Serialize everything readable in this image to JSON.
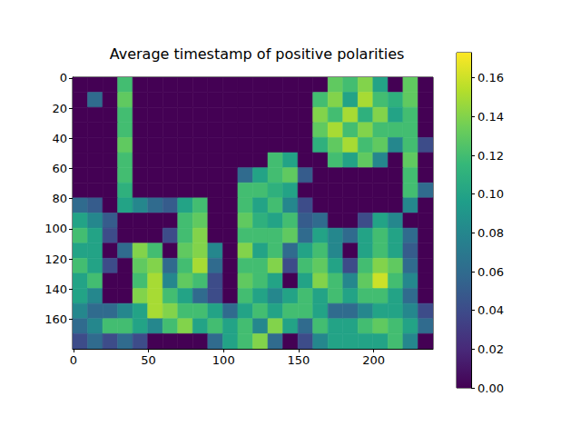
{
  "chart_data": {
    "type": "heatmap",
    "title": "Average timestamp of positive polarities",
    "color": "viridis",
    "xlim": [
      -0.5,
      239.5
    ],
    "ylim": [
      179.5,
      -0.5
    ],
    "xticks": [
      0,
      50,
      100,
      150,
      200
    ],
    "yticks": [
      0,
      20,
      40,
      60,
      80,
      100,
      120,
      140,
      160
    ],
    "x_bins": [
      -0.5,
      9.5,
      19.5,
      29.5,
      39.5,
      49.5,
      59.5,
      69.5,
      79.5,
      89.5,
      99.5,
      109.5,
      119.5,
      129.5,
      139.5,
      149.5,
      159.5,
      169.5,
      179.5,
      189.5,
      199.5,
      209.5,
      219.5,
      229.5,
      239.5
    ],
    "y_bins": [
      -0.5,
      9.5,
      19.5,
      29.5,
      39.5,
      49.5,
      59.5,
      69.5,
      79.5,
      89.5,
      99.5,
      109.5,
      119.5,
      129.5,
      139.5,
      149.5,
      159.5,
      169.5,
      179.5
    ],
    "values": [
      [
        0,
        0,
        0,
        0.12,
        0,
        0,
        0,
        0,
        0,
        0,
        0,
        0,
        0,
        0,
        0,
        0,
        0,
        0.13,
        0.12,
        0.14,
        0.1,
        0,
        0.13,
        0
      ],
      [
        0,
        0.06,
        0,
        0.13,
        0,
        0,
        0,
        0,
        0,
        0,
        0,
        0,
        0,
        0,
        0,
        0,
        0.12,
        0.14,
        0.1,
        0.15,
        0.12,
        0.11,
        0.13,
        0
      ],
      [
        0,
        0,
        0,
        0.12,
        0,
        0,
        0,
        0,
        0,
        0,
        0,
        0,
        0,
        0,
        0,
        0,
        0.14,
        0.12,
        0.15,
        0.11,
        0.14,
        0.1,
        0.12,
        0
      ],
      [
        0,
        0,
        0,
        0.12,
        0,
        0,
        0,
        0,
        0,
        0,
        0,
        0,
        0,
        0,
        0,
        0,
        0.13,
        0.15,
        0.12,
        0.14,
        0.12,
        0.12,
        0.12,
        0
      ],
      [
        0,
        0,
        0,
        0.13,
        0,
        0,
        0,
        0,
        0,
        0,
        0,
        0,
        0,
        0,
        0,
        0,
        0.11,
        0.13,
        0.15,
        0.12,
        0.13,
        0.08,
        0.12,
        0.04
      ],
      [
        0,
        0,
        0,
        0.12,
        0,
        0,
        0,
        0,
        0,
        0,
        0,
        0,
        0,
        0.12,
        0.1,
        0,
        0,
        0.12,
        0.1,
        0.13,
        0.08,
        0,
        0.13,
        0
      ],
      [
        0,
        0,
        0,
        0.12,
        0,
        0,
        0,
        0,
        0,
        0,
        0,
        0.06,
        0.1,
        0.12,
        0.13,
        0.05,
        0,
        0,
        0,
        0,
        0,
        0,
        0.12,
        0
      ],
      [
        0,
        0,
        0,
        0.11,
        0,
        0,
        0,
        0,
        0,
        0,
        0,
        0.12,
        0.12,
        0.11,
        0.1,
        0,
        0,
        0,
        0,
        0,
        0,
        0,
        0.12,
        0.06
      ],
      [
        0.06,
        0.05,
        0,
        0.1,
        0.08,
        0.06,
        0.05,
        0.1,
        0.12,
        0,
        0,
        0.12,
        0.1,
        0.12,
        0.08,
        0.04,
        0,
        0,
        0,
        0,
        0,
        0,
        0.08,
        0
      ],
      [
        0.1,
        0.08,
        0.05,
        0,
        0,
        0,
        0,
        0.12,
        0.13,
        0,
        0,
        0.13,
        0.11,
        0.1,
        0.12,
        0.05,
        0.06,
        0,
        0,
        0.04,
        0.1,
        0.08,
        0,
        0
      ],
      [
        0.12,
        0.1,
        0.04,
        0,
        0,
        0,
        0.04,
        0.12,
        0.14,
        0,
        0,
        0.12,
        0.12,
        0.12,
        0.13,
        0.06,
        0.1,
        0.08,
        0.06,
        0.1,
        0.12,
        0.1,
        0.06,
        0
      ],
      [
        0.1,
        0.1,
        0,
        0.06,
        0.14,
        0.12,
        0,
        0.13,
        0.14,
        0.08,
        0,
        0.14,
        0.1,
        0.12,
        0.06,
        0.1,
        0.12,
        0.08,
        0,
        0.1,
        0.12,
        0.1,
        0.05,
        0
      ],
      [
        0.12,
        0.1,
        0.04,
        0,
        0.13,
        0.14,
        0.06,
        0.12,
        0.15,
        0.06,
        0,
        0.12,
        0.12,
        0.14,
        0.04,
        0.12,
        0.13,
        0.1,
        0.04,
        0.12,
        0.14,
        0.13,
        0.06,
        0
      ],
      [
        0.1,
        0.12,
        0,
        0,
        0.12,
        0.15,
        0.08,
        0.13,
        0.12,
        0.04,
        0,
        0.13,
        0.12,
        0.1,
        0,
        0.1,
        0.14,
        0.12,
        0.08,
        0.13,
        0.16,
        0.12,
        0.08,
        0
      ],
      [
        0.1,
        0.08,
        0,
        0,
        0.14,
        0.15,
        0.12,
        0.1,
        0.06,
        0.04,
        0,
        0.12,
        0.1,
        0.08,
        0.1,
        0.12,
        0.1,
        0.12,
        0.1,
        0.12,
        0.12,
        0.1,
        0.06,
        0
      ],
      [
        0.08,
        0.06,
        0.06,
        0.08,
        0.1,
        0.15,
        0.14,
        0.12,
        0.12,
        0.1,
        0.06,
        0.1,
        0.12,
        0.1,
        0.12,
        0.12,
        0.1,
        0.06,
        0.06,
        0.08,
        0.1,
        0.1,
        0.08,
        0.04
      ],
      [
        0.06,
        0.08,
        0.12,
        0.12,
        0.1,
        0.08,
        0.12,
        0.14,
        0.1,
        0.12,
        0.1,
        0.12,
        0.08,
        0.14,
        0.1,
        0.06,
        0.12,
        0.1,
        0.1,
        0.12,
        0.13,
        0.12,
        0.1,
        0.06
      ],
      [
        0.04,
        0.06,
        0.04,
        0.06,
        0.04,
        0,
        0,
        0,
        0,
        0.06,
        0.1,
        0.12,
        0.14,
        0.06,
        0,
        0.04,
        0.08,
        0.1,
        0.1,
        0.1,
        0.1,
        0.12,
        0.08,
        0
      ]
    ],
    "colorbar": {
      "range": [
        0,
        0.173
      ],
      "ticks": [
        {
          "value": 0,
          "label": "0.00"
        },
        {
          "value": 0.02,
          "label": "0.02"
        },
        {
          "value": 0.04,
          "label": "0.04"
        },
        {
          "value": 0.06,
          "label": "0.06"
        },
        {
          "value": 0.08,
          "label": "0.08"
        },
        {
          "value": 0.1,
          "label": "0.10"
        },
        {
          "value": 0.12,
          "label": "0.12"
        },
        {
          "value": 0.14,
          "label": "0.14"
        },
        {
          "value": 0.16,
          "label": "0.16"
        }
      ]
    }
  }
}
